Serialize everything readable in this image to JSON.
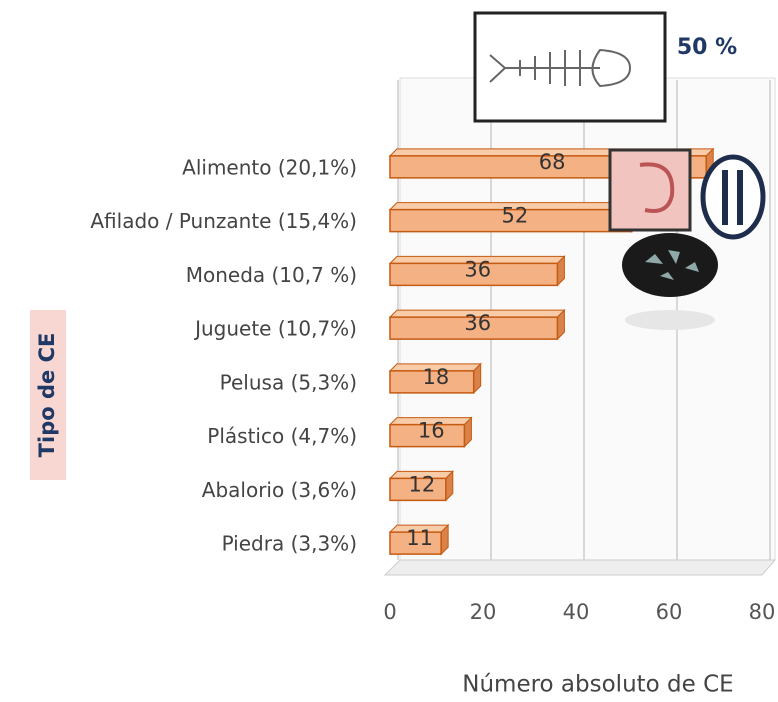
{
  "chart_data": {
    "type": "bar",
    "orientation": "horizontal",
    "annotation": "50 %",
    "categories": [
      "Alimento (20,1%)",
      "Afilado / Punzante (15,4%)",
      "Moneda (10,7 %)",
      "Juguete (10,7%)",
      "Pelusa (5,3%)",
      "Plástico (4,7%)",
      "Abalorio (3,6%)",
      "Piedra (3,3%)"
    ],
    "values": [
      68,
      52,
      36,
      36,
      18,
      16,
      12,
      11
    ],
    "color": "#f4b183",
    "xlabel": "Número absoluto de CE",
    "ylabel": "Tipo de CE",
    "xlim": [
      0,
      80
    ],
    "xticks": [
      0,
      20,
      40,
      60,
      80
    ],
    "grid": true
  }
}
